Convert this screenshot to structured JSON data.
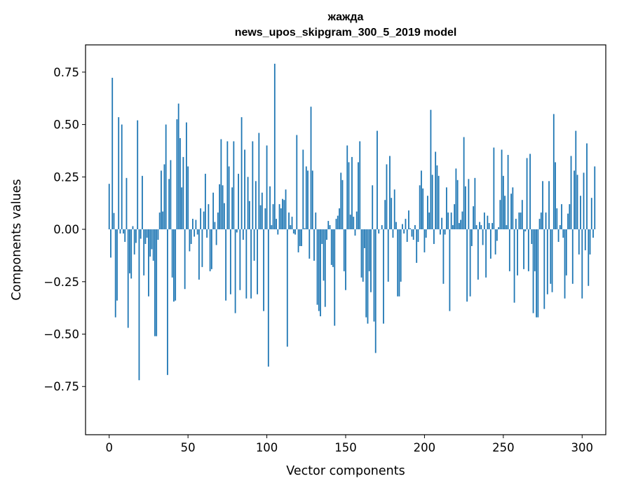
{
  "chart_data": {
    "type": "bar",
    "title_line1": "жажда",
    "title_line2": "news_upos_skipgram_300_5_2019 model",
    "xlabel": "Vector components",
    "ylabel": "Components values",
    "xlim": [
      -15,
      315
    ],
    "ylim": [
      -0.98,
      0.88
    ],
    "xticks": [
      0,
      50,
      100,
      150,
      200,
      250,
      300
    ],
    "xtick_labels": [
      "0",
      "50",
      "100",
      "150",
      "200",
      "250",
      "300"
    ],
    "yticks": [
      -0.75,
      -0.5,
      -0.25,
      0.0,
      0.25,
      0.5,
      0.75
    ],
    "ytick_labels": [
      "−0.75",
      "−0.50",
      "−0.25",
      "0.00",
      "0.25",
      "0.50",
      "0.75"
    ],
    "bar_color": "#1f77b4",
    "values": [
      0.217,
      -0.135,
      0.723,
      0.078,
      -0.42,
      -0.34,
      0.535,
      -0.02,
      0.5,
      -0.02,
      -0.06,
      0.245,
      -0.47,
      -0.21,
      -0.235,
      0.015,
      -0.12,
      -0.065,
      0.52,
      -0.72,
      -0.045,
      0.255,
      -0.22,
      -0.07,
      -0.04,
      -0.32,
      -0.13,
      -0.095,
      -0.15,
      -0.51,
      -0.51,
      -0.05,
      0.08,
      0.28,
      0.085,
      0.31,
      0.5,
      -0.695,
      0.24,
      0.33,
      -0.23,
      -0.345,
      -0.34,
      0.525,
      0.6,
      0.435,
      0.2,
      0.345,
      -0.285,
      0.51,
      0.3,
      -0.105,
      -0.07,
      0.05,
      -0.035,
      0.045,
      -0.025,
      -0.24,
      0.1,
      -0.18,
      0.085,
      0.265,
      -0.04,
      0.12,
      -0.2,
      -0.19,
      0.175,
      0.035,
      -0.075,
      0.08,
      0.215,
      0.43,
      0.21,
      0.125,
      -0.34,
      0.42,
      0.3,
      -0.31,
      0.2,
      0.42,
      -0.4,
      -0.015,
      0.265,
      -0.29,
      0.535,
      -0.05,
      0.38,
      -0.33,
      0.25,
      0.135,
      -0.33,
      0.42,
      -0.15,
      0.23,
      -0.31,
      0.46,
      0.115,
      0.175,
      -0.39,
      0.1,
      0.4,
      -0.655,
      0.205,
      0.02,
      0.12,
      0.79,
      0.05,
      -0.025,
      0.12,
      0.1,
      0.145,
      0.14,
      0.19,
      -0.56,
      0.08,
      0.02,
      0.06,
      -0.02,
      -0.025,
      0.45,
      -0.11,
      -0.08,
      -0.08,
      0.38,
      0.005,
      0.3,
      0.28,
      -0.14,
      0.585,
      0.28,
      -0.15,
      0.08,
      -0.36,
      -0.39,
      -0.415,
      -0.07,
      -0.245,
      -0.37,
      -0.05,
      0.04,
      0.02,
      -0.17,
      -0.18,
      -0.46,
      0.05,
      0.065,
      0.1,
      0.27,
      0.235,
      -0.2,
      -0.29,
      0.4,
      0.32,
      0.07,
      0.345,
      0.06,
      -0.03,
      0.085,
      0.32,
      0.42,
      -0.23,
      -0.25,
      -0.09,
      -0.42,
      -0.45,
      -0.2,
      -0.3,
      0.21,
      -0.44,
      -0.59,
      0.47,
      -0.02,
      0.0,
      0.02,
      -0.45,
      0.14,
      0.31,
      -0.25,
      0.35,
      0.15,
      -0.04,
      0.19,
      0.035,
      -0.32,
      -0.32,
      -0.25,
      0.025,
      -0.02,
      0.05,
      -0.06,
      0.09,
      0.005,
      -0.035,
      -0.05,
      0.02,
      -0.16,
      -0.06,
      0.21,
      0.28,
      0.195,
      -0.11,
      -0.04,
      0.16,
      0.08,
      0.57,
      0.26,
      -0.07,
      0.37,
      0.305,
      0.255,
      -0.025,
      0.055,
      -0.26,
      -0.025,
      0.2,
      0.08,
      -0.39,
      0.08,
      0.02,
      0.12,
      0.29,
      0.235,
      0.03,
      0.045,
      0.085,
      0.44,
      0.205,
      -0.345,
      0.24,
      -0.32,
      -0.08,
      0.11,
      0.245,
      0.02,
      -0.24,
      0.035,
      0.02,
      -0.075,
      0.08,
      -0.23,
      0.065,
      0.03,
      -0.14,
      0.03,
      0.39,
      -0.12,
      -0.055,
      0.01,
      0.14,
      0.38,
      0.255,
      0.16,
      0.02,
      0.355,
      -0.2,
      0.17,
      0.2,
      -0.35,
      0.05,
      -0.22,
      0.08,
      0.08,
      0.14,
      -0.19,
      -0.01,
      0.34,
      -0.2,
      0.36,
      -0.07,
      -0.4,
      -0.2,
      -0.42,
      -0.42,
      0.05,
      0.08,
      0.23,
      -0.38,
      0.08,
      -0.31,
      0.23,
      -0.26,
      -0.3,
      0.55,
      0.32,
      0.1,
      -0.06,
      0.02,
      0.12,
      -0.04,
      -0.33,
      -0.22,
      0.075,
      0.12,
      0.35,
      -0.26,
      0.28,
      0.47,
      0.26,
      -0.12,
      0.16,
      -0.33,
      0.27,
      -0.1,
      0.41,
      -0.27,
      -0.12,
      0.15,
      -0.04,
      0.3
    ]
  }
}
